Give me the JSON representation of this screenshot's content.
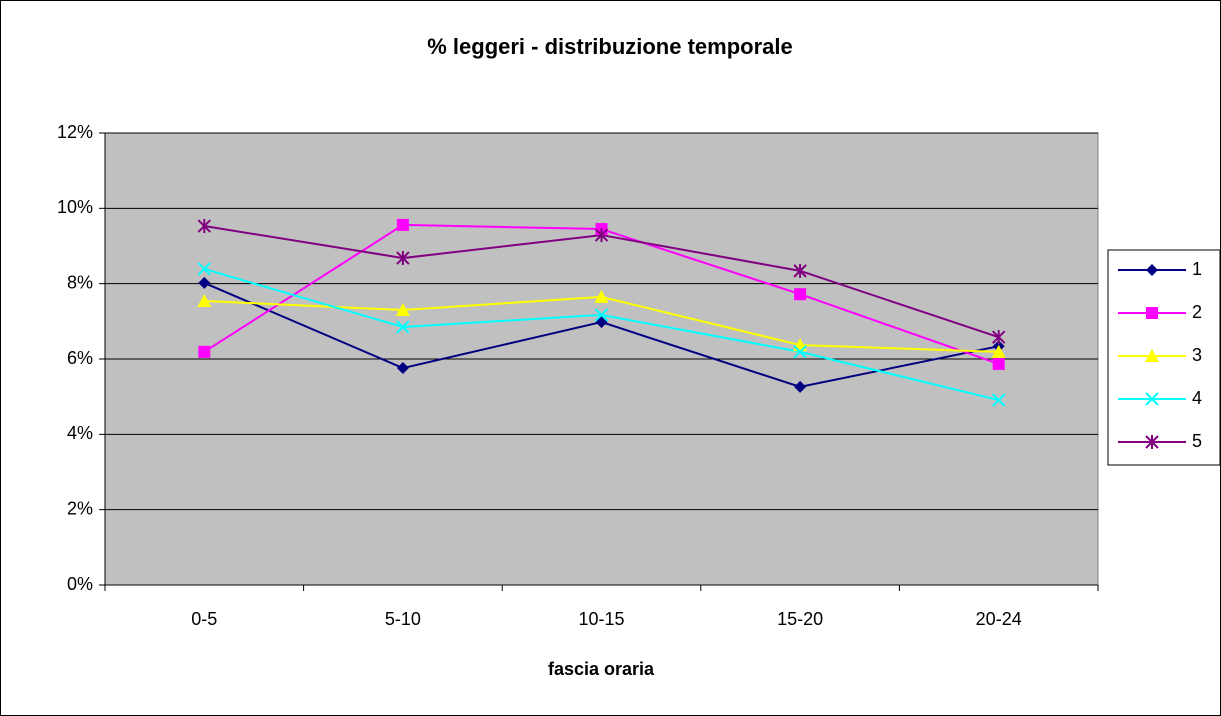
{
  "chart_data": {
    "type": "line",
    "title": "% leggeri - distribuzione temporale",
    "x_label": "fascia oraria",
    "categories": [
      "0-5",
      "5-10",
      "10-15",
      "15-20",
      "20-24"
    ],
    "series": [
      {
        "name": "1",
        "color": "#000080",
        "marker": "diamond",
        "values": [
          8.02,
          5.76,
          6.98,
          5.26,
          6.34
        ]
      },
      {
        "name": "2",
        "color": "#FF00FF",
        "marker": "square",
        "values": [
          6.19,
          9.56,
          9.45,
          7.72,
          5.87
        ]
      },
      {
        "name": "3",
        "color": "#FFFF00",
        "marker": "triangle",
        "values": [
          7.54,
          7.3,
          7.65,
          6.37,
          6.19
        ]
      },
      {
        "name": "4",
        "color": "#00FFFF",
        "marker": "x",
        "values": [
          8.39,
          6.85,
          7.17,
          6.19,
          4.91
        ]
      },
      {
        "name": "5",
        "color": "#800080",
        "marker": "star",
        "values": [
          9.53,
          8.68,
          9.29,
          8.34,
          6.58
        ]
      }
    ],
    "ylim": [
      0,
      12
    ],
    "yticks": [
      {
        "value": 0,
        "label": "0%"
      },
      {
        "value": 2,
        "label": "2%"
      },
      {
        "value": 4,
        "label": "4%"
      },
      {
        "value": 6,
        "label": "6%"
      },
      {
        "value": 8,
        "label": "8%"
      },
      {
        "value": 10,
        "label": "10%"
      },
      {
        "value": 12,
        "label": "12%"
      }
    ],
    "grid": true,
    "legend": "right",
    "plot_background": "#C0C0C0"
  }
}
